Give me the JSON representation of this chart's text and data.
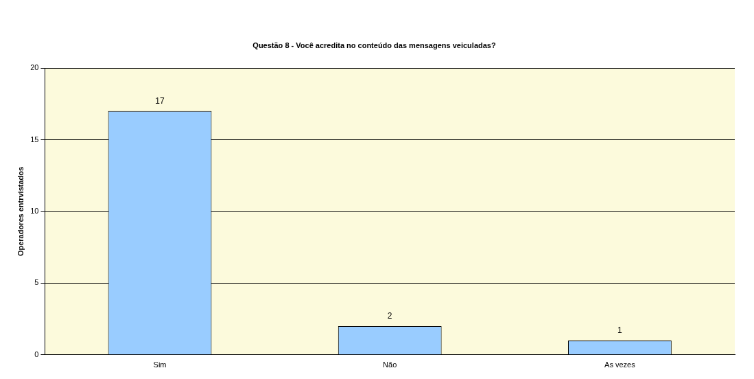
{
  "chart_data": {
    "type": "bar",
    "title": "Questão 8 - Você acredita no conteúdo das mensagens veiculadas?",
    "ylabel": "Operadores entrvistados",
    "categories": [
      "Sim",
      "Não",
      "As vezes"
    ],
    "values": [
      17,
      2,
      1
    ],
    "color": "#99ccff",
    "ylim": [
      0,
      20
    ],
    "yticks": [
      0,
      5,
      10,
      15,
      20
    ],
    "grid": "y",
    "data_labels": true,
    "legend": false
  }
}
